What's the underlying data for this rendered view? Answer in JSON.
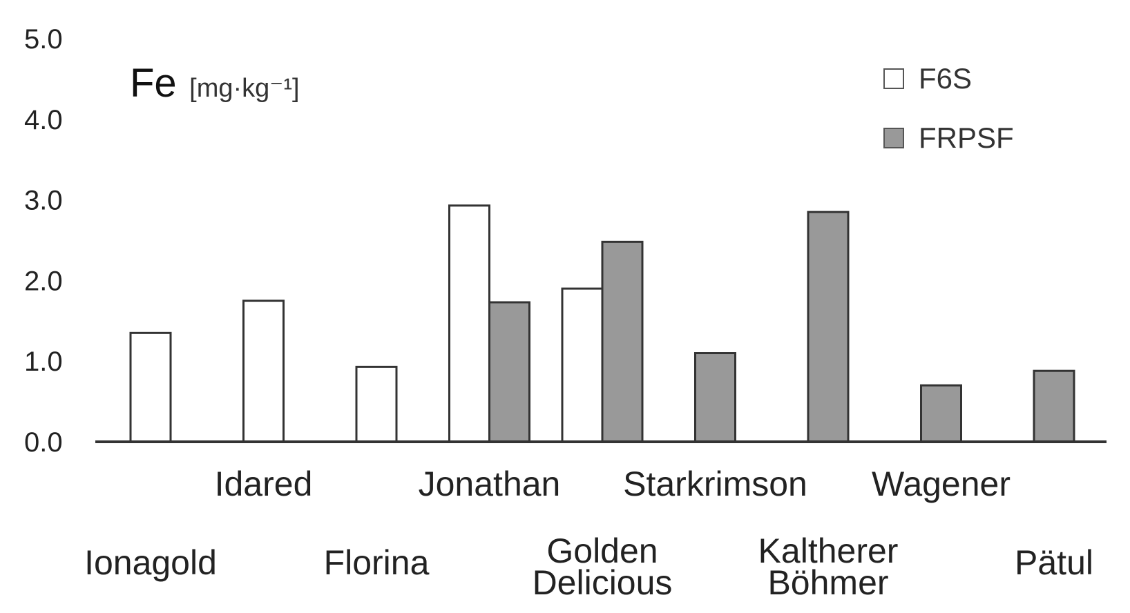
{
  "chart_data": {
    "type": "bar",
    "ylabel": "Fe",
    "ylabel_unit": "[mg·kg⁻¹]",
    "ylim": [
      0,
      5
    ],
    "yticks": [
      "0.0",
      "1.0",
      "2.0",
      "3.0",
      "4.0",
      "5.0"
    ],
    "grid": false,
    "legend_position": "top-right",
    "categories": [
      [
        "Ionagold"
      ],
      [
        "Idared"
      ],
      [
        "Florina"
      ],
      [
        "Jonathan"
      ],
      [
        "Golden",
        "Delicious"
      ],
      [
        "Starkrimson"
      ],
      [
        "Kaltherer",
        "Böhmer"
      ],
      [
        "Wagener"
      ],
      [
        "Pätul"
      ]
    ],
    "series": [
      {
        "name": "F6S",
        "color": "#ffffff",
        "values": [
          1.35,
          1.75,
          0.93,
          2.93,
          1.9,
          null,
          null,
          null,
          null
        ]
      },
      {
        "name": "FRPSF",
        "color": "#999999",
        "values": [
          null,
          null,
          null,
          1.73,
          2.48,
          1.1,
          2.85,
          0.7,
          0.88
        ]
      }
    ]
  }
}
